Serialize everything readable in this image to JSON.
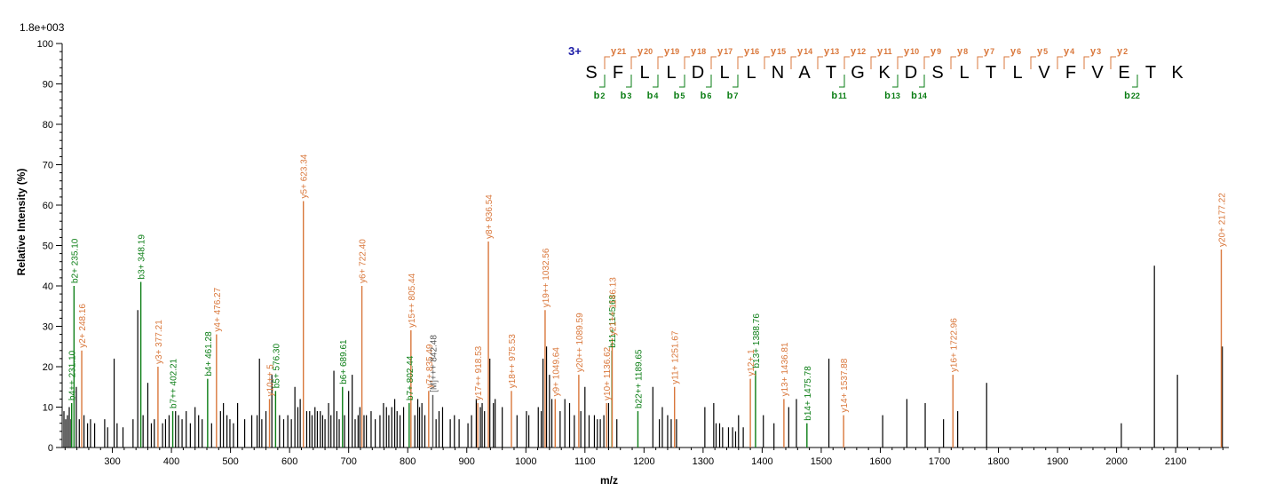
{
  "colors": {
    "b": "#0a7d14",
    "y": "#d9773b",
    "other": "#555555",
    "plain": "#000000",
    "charge": "#1a1aa6"
  },
  "chart_data": {
    "type": "bar",
    "scale_label": "1.8e+003",
    "xlabel": "m/z",
    "ylabel": "Relative   Intensity (%)",
    "xlim": [
      215,
      2190
    ],
    "ylim": [
      0,
      100
    ],
    "xticks": [
      300,
      400,
      500,
      600,
      700,
      800,
      900,
      1000,
      1100,
      1200,
      1300,
      1400,
      1500,
      1600,
      1700,
      1800,
      1900,
      2000,
      2100
    ],
    "yticks": [
      0,
      10,
      20,
      30,
      40,
      50,
      60,
      70,
      80,
      90,
      100
    ],
    "charge": "3+",
    "sequence": [
      "S",
      "F",
      "L",
      "L",
      "D",
      "L",
      "L",
      "N",
      "A",
      "T",
      "G",
      "K",
      "D",
      "S",
      "L",
      "T",
      "L",
      "V",
      "F",
      "V",
      "E",
      "T",
      "K"
    ],
    "y_ions": [
      {
        "label": "y",
        "num": "21",
        "after": 1
      },
      {
        "label": "y",
        "num": "20",
        "after": 2
      },
      {
        "label": "y",
        "num": "19",
        "after": 3
      },
      {
        "label": "y",
        "num": "18",
        "after": 4
      },
      {
        "label": "y",
        "num": "17",
        "after": 5
      },
      {
        "label": "y",
        "num": "16",
        "after": 6
      },
      {
        "label": "y",
        "num": "15",
        "after": 7
      },
      {
        "label": "y",
        "num": "14",
        "after": 8
      },
      {
        "label": "y",
        "num": "13",
        "after": 9
      },
      {
        "label": "y",
        "num": "12",
        "after": 10
      },
      {
        "label": "y",
        "num": "11",
        "after": 11
      },
      {
        "label": "y",
        "num": "10",
        "after": 12
      },
      {
        "label": "y",
        "num": "9",
        "after": 13
      },
      {
        "label": "y",
        "num": "8",
        "after": 14
      },
      {
        "label": "y",
        "num": "7",
        "after": 15
      },
      {
        "label": "y",
        "num": "6",
        "after": 16
      },
      {
        "label": "y",
        "num": "5",
        "after": 17
      },
      {
        "label": "y",
        "num": "4",
        "after": 18
      },
      {
        "label": "y",
        "num": "3",
        "after": 19
      },
      {
        "label": "y",
        "num": "2",
        "after": 20
      }
    ],
    "b_ions": [
      {
        "label": "b",
        "num": "2",
        "after": 1
      },
      {
        "label": "b",
        "num": "3",
        "after": 2
      },
      {
        "label": "b",
        "num": "4",
        "after": 3
      },
      {
        "label": "b",
        "num": "5",
        "after": 4
      },
      {
        "label": "b",
        "num": "6",
        "after": 5
      },
      {
        "label": "b",
        "num": "7",
        "after": 6
      },
      {
        "label": "b",
        "num": "11",
        "after": 10
      },
      {
        "label": "b",
        "num": "13",
        "after": 12
      },
      {
        "label": "b",
        "num": "14",
        "after": 13
      },
      {
        "label": "b",
        "num": "22",
        "after": 21
      }
    ],
    "labeled_peaks": [
      {
        "mz": 231.1,
        "intensity": 11,
        "label": "b4++ 231.10",
        "ion": "b"
      },
      {
        "mz": 235.1,
        "intensity": 40,
        "label": "b2+ 235.10",
        "ion": "b"
      },
      {
        "mz": 248.16,
        "intensity": 24,
        "label": "y2+ 248.16",
        "ion": "y"
      },
      {
        "mz": 348.19,
        "intensity": 41,
        "label": "b3+ 348.19",
        "ion": "b"
      },
      {
        "mz": 377.21,
        "intensity": 20,
        "label": "y3+ 377.21",
        "ion": "y"
      },
      {
        "mz": 402.21,
        "intensity": 9,
        "label": "b7++ 402.21",
        "ion": "b"
      },
      {
        "mz": 461.28,
        "intensity": 17,
        "label": "b4+ 461.28",
        "ion": "b"
      },
      {
        "mz": 476.27,
        "intensity": 28,
        "label": "y4+ 476.27",
        "ion": "y"
      },
      {
        "mz": 566.0,
        "intensity": 12,
        "label": "y10++ 5",
        "ion": "y"
      },
      {
        "mz": 576.3,
        "intensity": 14,
        "label": "b5+ 576.30",
        "ion": "b"
      },
      {
        "mz": 623.34,
        "intensity": 61,
        "label": "y5+ 623.34",
        "ion": "y"
      },
      {
        "mz": 689.61,
        "intensity": 15,
        "label": "b6+ 689.61",
        "ion": "b"
      },
      {
        "mz": 722.4,
        "intensity": 40,
        "label": "y6+ 722.40",
        "ion": "y"
      },
      {
        "mz": 802.44,
        "intensity": 11,
        "label": "b7+ 802.44",
        "ion": "b"
      },
      {
        "mz": 805.44,
        "intensity": 29,
        "label": "y15++ 805.44",
        "ion": "y"
      },
      {
        "mz": 835.49,
        "intensity": 14,
        "label": "y7+ 835.49",
        "ion": "y"
      },
      {
        "mz": 842.48,
        "intensity": 13,
        "label": "[M]+++ 842.48",
        "ion": "other"
      },
      {
        "mz": 918.53,
        "intensity": 11,
        "label": "y17++ 918.53",
        "ion": "y"
      },
      {
        "mz": 936.54,
        "intensity": 51,
        "label": "y8+ 936.54",
        "ion": "y"
      },
      {
        "mz": 975.53,
        "intensity": 14,
        "label": "y18++ 975.53",
        "ion": "y"
      },
      {
        "mz": 1032.56,
        "intensity": 34,
        "label": "y19++ 1032.56",
        "ion": "y"
      },
      {
        "mz": 1049.64,
        "intensity": 12,
        "label": "y9+ 1049.64",
        "ion": "y"
      },
      {
        "mz": 1089.59,
        "intensity": 18,
        "label": "y20++ 1089.59",
        "ion": "y"
      },
      {
        "mz": 1136.62,
        "intensity": 11,
        "label": "y10+ 1136.62",
        "ion": "y"
      },
      {
        "mz": 1145.68,
        "intensity": 24,
        "label": "b11+ 1145.68",
        "ion": "b"
      },
      {
        "mz": 1146.13,
        "intensity": 27,
        "label": "y21++ 1146.13",
        "ion": "y"
      },
      {
        "mz": 1189.65,
        "intensity": 9,
        "label": "b22++ 1189.65",
        "ion": "b"
      },
      {
        "mz": 1251.67,
        "intensity": 15,
        "label": "y11+ 1251.67",
        "ion": "y"
      },
      {
        "mz": 1380.0,
        "intensity": 17,
        "label": "y12+ 1",
        "ion": "y"
      },
      {
        "mz": 1388.76,
        "intensity": 19,
        "label": "b13+ 1388.76",
        "ion": "b"
      },
      {
        "mz": 1436.81,
        "intensity": 12,
        "label": "y13+ 1436.81",
        "ion": "y"
      },
      {
        "mz": 1475.78,
        "intensity": 6,
        "label": "b14+ 1475.78",
        "ion": "b"
      },
      {
        "mz": 1537.88,
        "intensity": 8,
        "label": "y14+ 1537.88",
        "ion": "y"
      },
      {
        "mz": 1722.96,
        "intensity": 18,
        "label": "y16+ 1722.96",
        "ion": "y"
      },
      {
        "mz": 2177.22,
        "intensity": 49,
        "label": "y20+ 2177.22",
        "ion": "y"
      }
    ],
    "unlabeled_peaks": [
      [
        218,
        9
      ],
      [
        221,
        7
      ],
      [
        224,
        8
      ],
      [
        227,
        10
      ],
      [
        230,
        7
      ],
      [
        239,
        15
      ],
      [
        244,
        7
      ],
      [
        252,
        8
      ],
      [
        258,
        6
      ],
      [
        263,
        7
      ],
      [
        270,
        6
      ],
      [
        287,
        7
      ],
      [
        292,
        5
      ],
      [
        303,
        22
      ],
      [
        308,
        6
      ],
      [
        318,
        5
      ],
      [
        335,
        7
      ],
      [
        343,
        34
      ],
      [
        352,
        8
      ],
      [
        360,
        16
      ],
      [
        366,
        6
      ],
      [
        371,
        7
      ],
      [
        385,
        6
      ],
      [
        390,
        7
      ],
      [
        396,
        8
      ],
      [
        407,
        9
      ],
      [
        412,
        8
      ],
      [
        418,
        7
      ],
      [
        425,
        9
      ],
      [
        432,
        6
      ],
      [
        440,
        10
      ],
      [
        446,
        8
      ],
      [
        452,
        7
      ],
      [
        468,
        6
      ],
      [
        483,
        9
      ],
      [
        488,
        11
      ],
      [
        494,
        8
      ],
      [
        499,
        7
      ],
      [
        505,
        6
      ],
      [
        512,
        11
      ],
      [
        524,
        7
      ],
      [
        536,
        8
      ],
      [
        545,
        8
      ],
      [
        549,
        22
      ],
      [
        553,
        7
      ],
      [
        560,
        9
      ],
      [
        570,
        18
      ],
      [
        583,
        8
      ],
      [
        590,
        7
      ],
      [
        597,
        8
      ],
      [
        603,
        7
      ],
      [
        609,
        15
      ],
      [
        614,
        10
      ],
      [
        618,
        12
      ],
      [
        629,
        9
      ],
      [
        634,
        9
      ],
      [
        638,
        8
      ],
      [
        643,
        10
      ],
      [
        647,
        9
      ],
      [
        652,
        9
      ],
      [
        656,
        8
      ],
      [
        660,
        7
      ],
      [
        666,
        11
      ],
      [
        670,
        8
      ],
      [
        675,
        19
      ],
      [
        680,
        9
      ],
      [
        684,
        7
      ],
      [
        693,
        8
      ],
      [
        700,
        14
      ],
      [
        706,
        18
      ],
      [
        711,
        7
      ],
      [
        716,
        8
      ],
      [
        719,
        10
      ],
      [
        726,
        8
      ],
      [
        730,
        8
      ],
      [
        738,
        9
      ],
      [
        745,
        7
      ],
      [
        753,
        8
      ],
      [
        759,
        11
      ],
      [
        764,
        10
      ],
      [
        768,
        8
      ],
      [
        773,
        10
      ],
      [
        778,
        12
      ],
      [
        782,
        9
      ],
      [
        787,
        8
      ],
      [
        793,
        10
      ],
      [
        812,
        8
      ],
      [
        817,
        12
      ],
      [
        820,
        10
      ],
      [
        824,
        11
      ],
      [
        829,
        8
      ],
      [
        848,
        7
      ],
      [
        853,
        9
      ],
      [
        859,
        10
      ],
      [
        872,
        7
      ],
      [
        879,
        8
      ],
      [
        887,
        7
      ],
      [
        902,
        6
      ],
      [
        908,
        8
      ],
      [
        916,
        12
      ],
      [
        923,
        10
      ],
      [
        926,
        11
      ],
      [
        930,
        9
      ],
      [
        939,
        22
      ],
      [
        945,
        11
      ],
      [
        948,
        12
      ],
      [
        960,
        10
      ],
      [
        985,
        8
      ],
      [
        1001,
        9
      ],
      [
        1005,
        8
      ],
      [
        1021,
        10
      ],
      [
        1026,
        9
      ],
      [
        1029,
        22
      ],
      [
        1035,
        25
      ],
      [
        1040,
        18
      ],
      [
        1044,
        12
      ],
      [
        1058,
        9
      ],
      [
        1066,
        12
      ],
      [
        1074,
        11
      ],
      [
        1082,
        8
      ],
      [
        1093,
        9
      ],
      [
        1100,
        15
      ],
      [
        1107,
        8
      ],
      [
        1116,
        8
      ],
      [
        1121,
        7
      ],
      [
        1126,
        7
      ],
      [
        1132,
        8
      ],
      [
        1140,
        11
      ],
      [
        1154,
        7
      ],
      [
        1215,
        15
      ],
      [
        1226,
        7
      ],
      [
        1231,
        10
      ],
      [
        1240,
        8
      ],
      [
        1246,
        7
      ],
      [
        1255,
        7
      ],
      [
        1303,
        10
      ],
      [
        1318,
        11
      ],
      [
        1322,
        6
      ],
      [
        1328,
        6
      ],
      [
        1333,
        5
      ],
      [
        1343,
        5
      ],
      [
        1350,
        5
      ],
      [
        1355,
        4
      ],
      [
        1360,
        8
      ],
      [
        1368,
        5
      ],
      [
        1402,
        8
      ],
      [
        1420,
        6
      ],
      [
        1445,
        10
      ],
      [
        1458,
        12
      ],
      [
        1513,
        22
      ],
      [
        1604,
        8
      ],
      [
        1645,
        12
      ],
      [
        1676,
        11
      ],
      [
        1707,
        7
      ],
      [
        1731,
        9
      ],
      [
        1780,
        16
      ],
      [
        2008,
        6
      ],
      [
        2064,
        45
      ],
      [
        2103,
        18
      ],
      [
        2179,
        25
      ]
    ]
  }
}
